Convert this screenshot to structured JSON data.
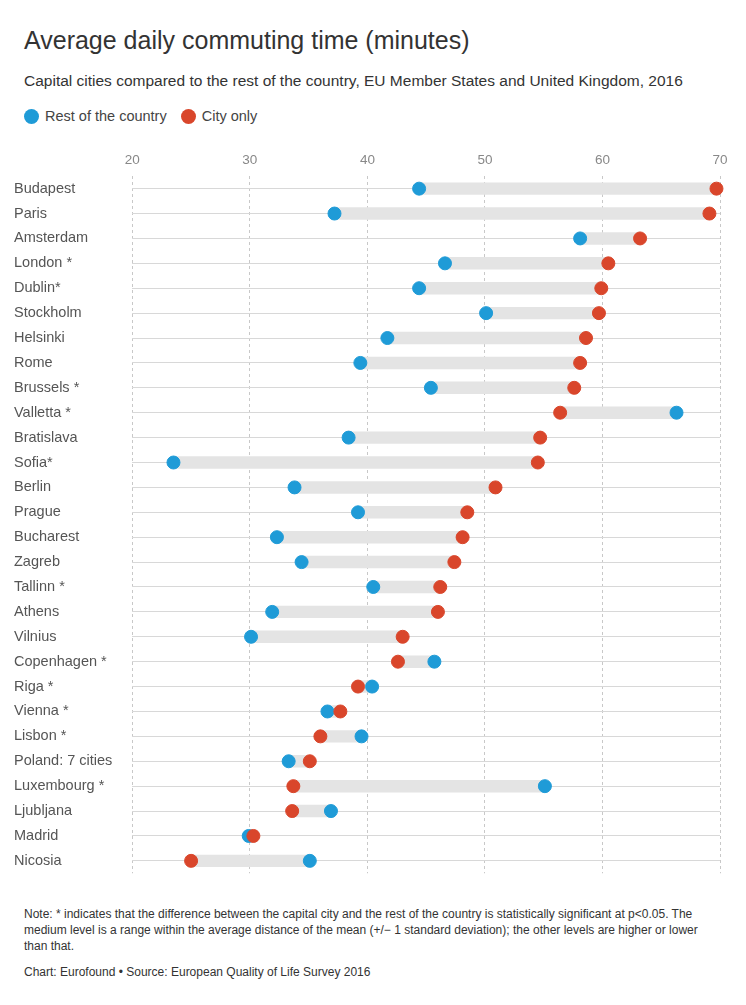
{
  "chart_data": {
    "type": "dumbbell",
    "title": "Average daily commuting time (minutes)",
    "subtitle": "Capital cities compared to the rest of the country, EU Member States and United Kingdom, 2016",
    "categories": [
      "Budapest",
      "Paris",
      "Amsterdam",
      "London *",
      "Dublin*",
      "Stockholm",
      "Helsinki",
      "Rome",
      "Brussels *",
      "Valletta *",
      "Bratislava",
      "Sofia*",
      "Berlin",
      "Prague",
      "Bucharest",
      "Zagreb",
      "Tallinn *",
      "Athens",
      "Vilnius",
      "Copenhagen *",
      "Riga *",
      "Vienna *",
      "Lisbon *",
      "Poland: 7 cities",
      "Luxembourg *",
      "Ljubljana",
      "Madrid",
      "Nicosia"
    ],
    "series": [
      {
        "name": "Rest of the country",
        "color": "#1f9bd7",
        "values": [
          44.4,
          37.2,
          58.1,
          46.6,
          44.4,
          50.1,
          41.7,
          39.4,
          45.4,
          66.3,
          38.4,
          23.5,
          33.8,
          39.2,
          32.3,
          34.4,
          40.5,
          31.9,
          30.1,
          45.7,
          40.4,
          36.6,
          39.5,
          33.3,
          55.1,
          36.9,
          29.9,
          35.1
        ]
      },
      {
        "name": "City only",
        "color": "#d9462b",
        "values": [
          69.7,
          69.1,
          63.2,
          60.5,
          59.9,
          59.7,
          58.6,
          58.1,
          57.6,
          56.4,
          54.7,
          54.5,
          50.9,
          48.5,
          48.1,
          47.4,
          46.2,
          46.0,
          43.0,
          42.6,
          39.2,
          37.7,
          36.0,
          35.1,
          33.7,
          33.6,
          30.3,
          25.0
        ]
      }
    ],
    "xlim": [
      20,
      70
    ],
    "xticks": [
      20,
      30,
      40,
      50,
      60,
      70
    ],
    "grid": true,
    "orientation": "horizontal",
    "legend": "top",
    "notes": "Note: * indicates that the difference between the capital city and the rest of the country is statistically significant at p<0.05. The medium level is a range within the average distance of the mean (+/− 1 standard deviation); the other levels are higher or lower than that.",
    "credit": "Chart: Eurofound • Source: European Quality of Life Survey 2016"
  }
}
